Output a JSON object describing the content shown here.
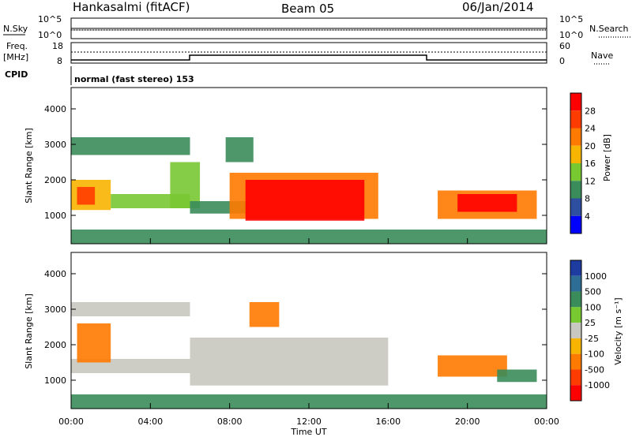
{
  "header": {
    "station": "Hankasalmi (fitACF)",
    "beam": "Beam 05",
    "date": "06/Jan/2014"
  },
  "top_panels": {
    "nsky_label": "N.Sky",
    "nsearch_label": "N.Search",
    "noise_ticks": [
      "10^5",
      "10^0"
    ],
    "freq_label_1": "Freq.",
    "freq_label_2": "[MHz]",
    "freq_ticks": [
      "18",
      "8"
    ],
    "nave_label": "Nave",
    "nave_ticks": [
      "60",
      "0"
    ],
    "cpid_label": "CPID",
    "cpid_text": "normal (fast stereo) 153"
  },
  "power_panel": {
    "ylabel": "Slant Range [km]",
    "cbar_label": "Power [dB]",
    "cbar_ticks": [
      "28",
      "24",
      "20",
      "16",
      "12",
      "8",
      "4"
    ],
    "cbar_colors": [
      "#ff0000",
      "#ff3c00",
      "#ff7a00",
      "#f7b400",
      "#78c832",
      "#3a8c5a",
      "#2e4ea0",
      "#0000ff"
    ]
  },
  "velocity_panel": {
    "ylabel": "Slant Range [km]",
    "cbar_label": "Velocity [m s⁻¹]",
    "cbar_ticks": [
      "1000",
      "500",
      "100",
      "25",
      "-25",
      "-100",
      "-500",
      "-1000"
    ],
    "cbar_colors": [
      "#1e3ca0",
      "#2e6e96",
      "#3a8c5a",
      "#78c832",
      "#c8c8c0",
      "#f7b400",
      "#ff7a00",
      "#ff3c00",
      "#ff0000"
    ]
  },
  "x_axis": {
    "label": "Time UT",
    "ticks": [
      "00:00",
      "04:00",
      "08:00",
      "12:00",
      "16:00",
      "20:00",
      "00:00"
    ]
  },
  "chart_data": [
    {
      "type": "heatmap",
      "title": "Power [dB]",
      "xlabel": "Time UT",
      "ylabel": "Slant Range [km]",
      "xlim": [
        0,
        24
      ],
      "ylim": [
        200,
        4600
      ],
      "colorbar_range": [
        0,
        30
      ],
      "yticks": [
        1000,
        2000,
        3000,
        4000
      ],
      "regions": [
        {
          "t0": 0.0,
          "t1": 2.0,
          "r0": 1150,
          "r1": 2000,
          "value": 18
        },
        {
          "t0": 0.3,
          "t1": 1.2,
          "r0": 1300,
          "r1": 1800,
          "value": 26
        },
        {
          "t0": 0.0,
          "t1": 6.0,
          "r0": 2700,
          "r1": 3200,
          "value": 8
        },
        {
          "t0": 2.0,
          "t1": 6.0,
          "r0": 1200,
          "r1": 1600,
          "value": 12
        },
        {
          "t0": 5.0,
          "t1": 6.5,
          "r0": 1200,
          "r1": 2500,
          "value": 14
        },
        {
          "t0": 6.0,
          "t1": 9.0,
          "r0": 1050,
          "r1": 1400,
          "value": 10
        },
        {
          "t0": 8.0,
          "t1": 15.5,
          "r0": 900,
          "r1": 2200,
          "value": 20
        },
        {
          "t0": 8.8,
          "t1": 14.8,
          "r0": 850,
          "r1": 2000,
          "value": 28
        },
        {
          "t0": 7.8,
          "t1": 9.2,
          "r0": 2500,
          "r1": 3200,
          "value": 8
        },
        {
          "t0": 18.5,
          "t1": 23.5,
          "r0": 900,
          "r1": 1700,
          "value": 20
        },
        {
          "t0": 19.5,
          "t1": 22.5,
          "r0": 1100,
          "r1": 1600,
          "value": 28
        },
        {
          "t0": 0.0,
          "t1": 24.0,
          "r0": 200,
          "r1": 600,
          "value": 8
        }
      ]
    },
    {
      "type": "heatmap",
      "title": "Velocity [m s⁻¹]",
      "xlabel": "Time UT",
      "ylabel": "Slant Range [km]",
      "xlim": [
        0,
        24
      ],
      "ylim": [
        200,
        4600
      ],
      "colorbar_range": [
        -1000,
        1000
      ],
      "yticks": [
        1000,
        2000,
        3000,
        4000
      ],
      "regions": [
        {
          "t0": 0.0,
          "t1": 6.0,
          "r0": 1200,
          "r1": 1600,
          "value": 0
        },
        {
          "t0": 0.0,
          "t1": 6.0,
          "r0": 2800,
          "r1": 3200,
          "value": 0
        },
        {
          "t0": 0.3,
          "t1": 2.0,
          "r0": 1500,
          "r1": 2600,
          "value": -500
        },
        {
          "t0": 6.0,
          "t1": 16.0,
          "r0": 850,
          "r1": 2200,
          "value": 0
        },
        {
          "t0": 9.0,
          "t1": 10.5,
          "r0": 2500,
          "r1": 3200,
          "value": -500
        },
        {
          "t0": 18.5,
          "t1": 22.0,
          "r0": 1100,
          "r1": 1700,
          "value": -500
        },
        {
          "t0": 21.5,
          "t1": 23.5,
          "r0": 950,
          "r1": 1300,
          "value": 100
        },
        {
          "t0": 0.0,
          "t1": 24.0,
          "r0": 200,
          "r1": 600,
          "value": 100
        }
      ]
    }
  ]
}
